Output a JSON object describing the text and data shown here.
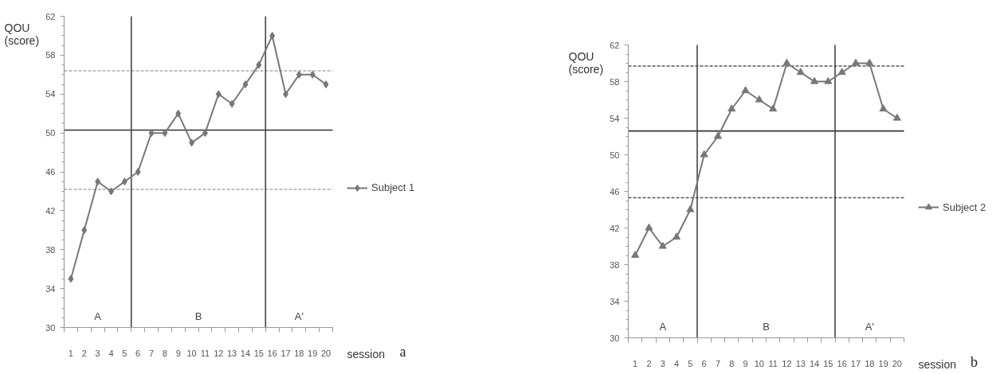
{
  "chart_data": [
    {
      "type": "line",
      "x": [
        1,
        2,
        3,
        4,
        5,
        6,
        7,
        8,
        9,
        10,
        11,
        12,
        13,
        14,
        15,
        16,
        17,
        18,
        19,
        20
      ],
      "series": [
        {
          "name": "Subject 1",
          "color": "#777777",
          "values": [
            35,
            40,
            45,
            44,
            45,
            46,
            50,
            50,
            52,
            49,
            50,
            54,
            53,
            55,
            57,
            60,
            54,
            56,
            56,
            55
          ]
        }
      ],
      "marker": "diamond",
      "legend": "right",
      "xlabel": "session",
      "ylabel": "QOU (score)",
      "xlim": [
        0.5,
        20.5
      ],
      "xticks": [
        1,
        2,
        3,
        4,
        5,
        6,
        7,
        8,
        9,
        10,
        11,
        12,
        13,
        14,
        15,
        16,
        17,
        18,
        19,
        20
      ],
      "ylim": [
        30,
        62
      ],
      "yticks": [
        30,
        34,
        38,
        42,
        46,
        50,
        54,
        58,
        62
      ],
      "ref_lines": [
        {
          "axis": "y",
          "value": 56.4,
          "color": "#aaaaaa",
          "line_style": "dashed"
        },
        {
          "axis": "y",
          "value": 50.3,
          "color": "#333333",
          "line_style": "solid"
        },
        {
          "axis": "y",
          "value": 44.2,
          "color": "#aaaaaa",
          "line_style": "dashed"
        },
        {
          "axis": "x",
          "value": 5.5,
          "color": "#444444",
          "line_style": "solid"
        },
        {
          "axis": "x",
          "value": 15.5,
          "color": "#444444",
          "line_style": "solid"
        }
      ],
      "annotations": [
        "A",
        "B",
        "A′",
        "a"
      ]
    },
    {
      "type": "line",
      "x": [
        1,
        2,
        3,
        4,
        5,
        6,
        7,
        8,
        9,
        10,
        11,
        12,
        13,
        14,
        15,
        16,
        17,
        18,
        19,
        20
      ],
      "series": [
        {
          "name": "Subject 2",
          "color": "#777777",
          "values": [
            39,
            42,
            40,
            41,
            44,
            50,
            52,
            55,
            57,
            56,
            55,
            60,
            59,
            58,
            58,
            59,
            60,
            60,
            55,
            54
          ]
        }
      ],
      "marker": "triangle",
      "legend": "right",
      "xlabel": "session",
      "ylabel": "QOU (score)",
      "xlim": [
        0.5,
        20.5
      ],
      "xticks": [
        1,
        2,
        3,
        4,
        5,
        6,
        7,
        8,
        9,
        10,
        11,
        12,
        13,
        14,
        15,
        16,
        17,
        18,
        19,
        20
      ],
      "ylim": [
        30,
        62
      ],
      "yticks": [
        30,
        34,
        38,
        42,
        46,
        50,
        54,
        58,
        62
      ],
      "ref_lines": [
        {
          "axis": "y",
          "value": 59.7,
          "color": "#555555",
          "line_style": "dashed"
        },
        {
          "axis": "y",
          "value": 52.6,
          "color": "#333333",
          "line_style": "solid"
        },
        {
          "axis": "y",
          "value": 45.3,
          "color": "#555555",
          "line_style": "dashed"
        },
        {
          "axis": "x",
          "value": 5.5,
          "color": "#444444",
          "line_style": "solid"
        },
        {
          "axis": "x",
          "value": 15.5,
          "color": "#444444",
          "line_style": "solid"
        }
      ],
      "annotations": [
        "A",
        "B",
        "A′",
        "b"
      ]
    }
  ]
}
